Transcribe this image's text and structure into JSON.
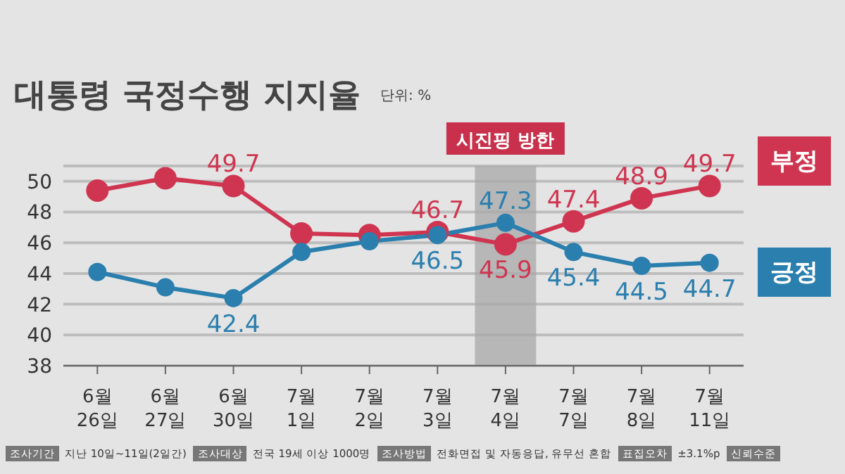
{
  "chart_data": {
    "type": "line",
    "title": "대통령 국정수행 지지율",
    "subtitle": "단위: %",
    "categories": [
      "6월 26일",
      "6월 27일",
      "6월 30일",
      "7월 1일",
      "7월 2일",
      "7월 3일",
      "7월 4일",
      "7월 7일",
      "7월 8일",
      "7월 11일"
    ],
    "series": [
      {
        "name": "부정",
        "color": "#cf3550",
        "values": [
          49.4,
          50.2,
          49.7,
          46.6,
          46.5,
          46.7,
          45.9,
          47.4,
          48.9,
          49.7
        ],
        "value_labels": [
          null,
          null,
          "49.7",
          null,
          null,
          "46.7",
          "45.9",
          "47.4",
          "48.9",
          "49.7"
        ]
      },
      {
        "name": "긍정",
        "color": "#2b7fae",
        "values": [
          44.1,
          43.1,
          42.4,
          45.4,
          46.1,
          46.5,
          47.3,
          45.4,
          44.5,
          44.7
        ],
        "value_labels": [
          null,
          null,
          "42.4",
          null,
          null,
          "46.5",
          "47.3",
          "45.4",
          "44.5",
          "44.7"
        ]
      }
    ],
    "ylim": [
      38,
      51
    ],
    "yticks": [
      38,
      40,
      42,
      44,
      46,
      48,
      50
    ],
    "grid": "y",
    "marker": "circle",
    "legend": "right",
    "bands": [
      {
        "axis": "x",
        "from": "7월 4일",
        "to": "7월 4일",
        "label": "시진핑 방한",
        "color": "#a8a8a8"
      }
    ],
    "annotations": [
      "조사기간 지난 10일~11일(2일간)",
      "조사대상 전국 19세 이상 1000명",
      "조사방법 전화면접 및 자동응답, 유무선 혼합",
      "표집오차 ±3.1%p",
      "신뢰수준"
    ]
  }
}
